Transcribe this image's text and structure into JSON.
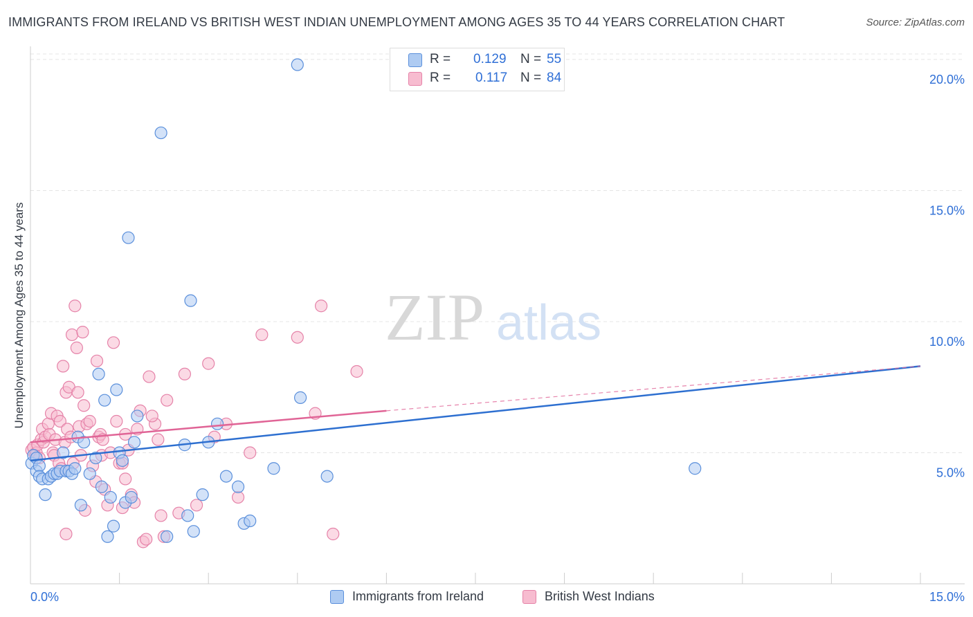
{
  "title": "IMMIGRANTS FROM IRELAND VS BRITISH WEST INDIAN UNEMPLOYMENT AMONG AGES 35 TO 44 YEARS CORRELATION CHART",
  "source": "Source: ZipAtlas.com",
  "watermark": {
    "zip": "ZIP",
    "atlas": "atlas"
  },
  "legend": {
    "r_label": "R =",
    "n_label": "N =",
    "series": [
      {
        "r": "0.129",
        "n": "55"
      },
      {
        "r": "0.117",
        "n": "84"
      }
    ]
  },
  "colors": {
    "blue_fill": "#aecbf2",
    "blue_stroke": "#5a8fdb",
    "blue_line": "#2d6fd0",
    "pink_fill": "#f7bcd0",
    "pink_stroke": "#e582a8",
    "pink_line": "#e06496",
    "grid": "#e4e4e4",
    "tick_text": "#2f6fd6"
  },
  "chart_data": {
    "type": "scatter",
    "title": "IMMIGRANTS FROM IRELAND VS BRITISH WEST INDIAN UNEMPLOYMENT AMONG AGES 35 TO 44 YEARS CORRELATION CHART",
    "xlabel": "",
    "ylabel": "Unemployment Among Ages 35 to 44 years",
    "xlim": [
      0,
      15
    ],
    "ylim": [
      0,
      20.5
    ],
    "x_tick_labels": [
      "0.0%",
      "15.0%"
    ],
    "y_ticks": [
      5,
      10,
      15,
      20
    ],
    "y_tick_labels": [
      "5.0%",
      "10.0%",
      "15.0%",
      "20.0%"
    ],
    "grid": true,
    "series": [
      {
        "name": "Immigrants from Ireland",
        "r": 0.129,
        "n": 55,
        "trend": {
          "x": [
            0,
            15
          ],
          "y": [
            4.7,
            8.3
          ],
          "dashed_from": null
        },
        "points": [
          [
            0.02,
            4.6
          ],
          [
            0.05,
            4.9
          ],
          [
            0.1,
            4.3
          ],
          [
            0.1,
            4.8
          ],
          [
            0.15,
            4.5
          ],
          [
            0.15,
            4.1
          ],
          [
            0.2,
            4.0
          ],
          [
            0.25,
            3.4
          ],
          [
            0.3,
            4.0
          ],
          [
            0.35,
            4.1
          ],
          [
            0.4,
            4.2
          ],
          [
            0.45,
            4.2
          ],
          [
            0.5,
            4.3
          ],
          [
            0.55,
            5.0
          ],
          [
            0.6,
            4.3
          ],
          [
            0.65,
            4.3
          ],
          [
            0.7,
            4.2
          ],
          [
            0.75,
            4.4
          ],
          [
            0.8,
            5.6
          ],
          [
            0.85,
            3.0
          ],
          [
            0.9,
            5.4
          ],
          [
            1.0,
            4.2
          ],
          [
            1.1,
            4.8
          ],
          [
            1.15,
            8.0
          ],
          [
            1.2,
            3.7
          ],
          [
            1.25,
            7.0
          ],
          [
            1.3,
            1.8
          ],
          [
            1.35,
            3.3
          ],
          [
            1.4,
            2.2
          ],
          [
            1.45,
            7.4
          ],
          [
            1.5,
            5.0
          ],
          [
            1.55,
            4.7
          ],
          [
            1.6,
            3.1
          ],
          [
            1.65,
            13.2
          ],
          [
            1.7,
            3.3
          ],
          [
            1.75,
            5.4
          ],
          [
            1.8,
            6.4
          ],
          [
            2.2,
            17.2
          ],
          [
            2.3,
            1.8
          ],
          [
            2.6,
            5.3
          ],
          [
            2.65,
            2.6
          ],
          [
            2.7,
            10.8
          ],
          [
            2.75,
            2.0
          ],
          [
            2.9,
            3.4
          ],
          [
            3.0,
            5.4
          ],
          [
            3.15,
            6.1
          ],
          [
            3.3,
            4.1
          ],
          [
            3.5,
            3.7
          ],
          [
            3.6,
            2.3
          ],
          [
            3.7,
            2.4
          ],
          [
            4.1,
            4.4
          ],
          [
            4.5,
            19.8
          ],
          [
            4.55,
            7.1
          ],
          [
            5.0,
            4.1
          ],
          [
            11.2,
            4.4
          ]
        ]
      },
      {
        "name": "British West Indians",
        "r": 0.117,
        "n": 84,
        "trend": {
          "x": [
            0,
            6
          ],
          "y": [
            5.4,
            6.6
          ],
          "dashed_to": [
            15,
            8.3
          ]
        },
        "points": [
          [
            0.02,
            5.1
          ],
          [
            0.05,
            5.2
          ],
          [
            0.08,
            4.9
          ],
          [
            0.1,
            5.0
          ],
          [
            0.12,
            5.3
          ],
          [
            0.15,
            4.8
          ],
          [
            0.18,
            5.5
          ],
          [
            0.2,
            5.9
          ],
          [
            0.22,
            5.4
          ],
          [
            0.25,
            5.6
          ],
          [
            0.3,
            6.1
          ],
          [
            0.32,
            5.7
          ],
          [
            0.35,
            6.5
          ],
          [
            0.38,
            5.0
          ],
          [
            0.4,
            4.9
          ],
          [
            0.42,
            5.5
          ],
          [
            0.45,
            6.4
          ],
          [
            0.48,
            4.6
          ],
          [
            0.5,
            6.2
          ],
          [
            0.52,
            4.4
          ],
          [
            0.55,
            8.3
          ],
          [
            0.58,
            5.4
          ],
          [
            0.6,
            7.3
          ],
          [
            0.62,
            5.9
          ],
          [
            0.65,
            7.5
          ],
          [
            0.68,
            5.6
          ],
          [
            0.7,
            9.5
          ],
          [
            0.72,
            4.6
          ],
          [
            0.75,
            10.6
          ],
          [
            0.78,
            9.0
          ],
          [
            0.8,
            7.3
          ],
          [
            0.82,
            6.0
          ],
          [
            0.85,
            4.9
          ],
          [
            0.88,
            9.6
          ],
          [
            0.9,
            6.8
          ],
          [
            0.92,
            2.8
          ],
          [
            0.95,
            6.1
          ],
          [
            1.0,
            6.2
          ],
          [
            1.05,
            4.5
          ],
          [
            1.1,
            3.9
          ],
          [
            1.12,
            8.5
          ],
          [
            1.15,
            5.6
          ],
          [
            1.18,
            5.7
          ],
          [
            1.2,
            4.9
          ],
          [
            1.22,
            5.5
          ],
          [
            1.25,
            3.6
          ],
          [
            1.3,
            3.0
          ],
          [
            1.35,
            5.0
          ],
          [
            1.4,
            9.2
          ],
          [
            1.45,
            6.2
          ],
          [
            1.5,
            4.6
          ],
          [
            1.55,
            4.6
          ],
          [
            1.6,
            4.0
          ],
          [
            1.65,
            5.1
          ],
          [
            1.7,
            3.4
          ],
          [
            1.75,
            3.1
          ],
          [
            1.8,
            5.9
          ],
          [
            1.85,
            6.6
          ],
          [
            1.9,
            1.6
          ],
          [
            1.95,
            1.7
          ],
          [
            2.0,
            7.9
          ],
          [
            2.1,
            6.1
          ],
          [
            2.15,
            5.5
          ],
          [
            2.2,
            2.6
          ],
          [
            2.3,
            7.0
          ],
          [
            2.5,
            2.7
          ],
          [
            2.6,
            8.0
          ],
          [
            2.8,
            3.0
          ],
          [
            3.0,
            8.4
          ],
          [
            3.1,
            5.6
          ],
          [
            3.3,
            6.1
          ],
          [
            3.5,
            3.3
          ],
          [
            3.7,
            5.0
          ],
          [
            3.9,
            9.5
          ],
          [
            4.5,
            9.4
          ],
          [
            4.8,
            6.5
          ],
          [
            4.9,
            10.6
          ],
          [
            5.1,
            1.9
          ],
          [
            5.5,
            8.1
          ],
          [
            0.6,
            1.9
          ],
          [
            1.55,
            2.9
          ],
          [
            2.25,
            1.8
          ],
          [
            1.6,
            5.7
          ],
          [
            2.05,
            6.4
          ]
        ]
      }
    ]
  },
  "bottom_legend": {
    "items": [
      "Immigrants from Ireland",
      "British West Indians"
    ]
  }
}
